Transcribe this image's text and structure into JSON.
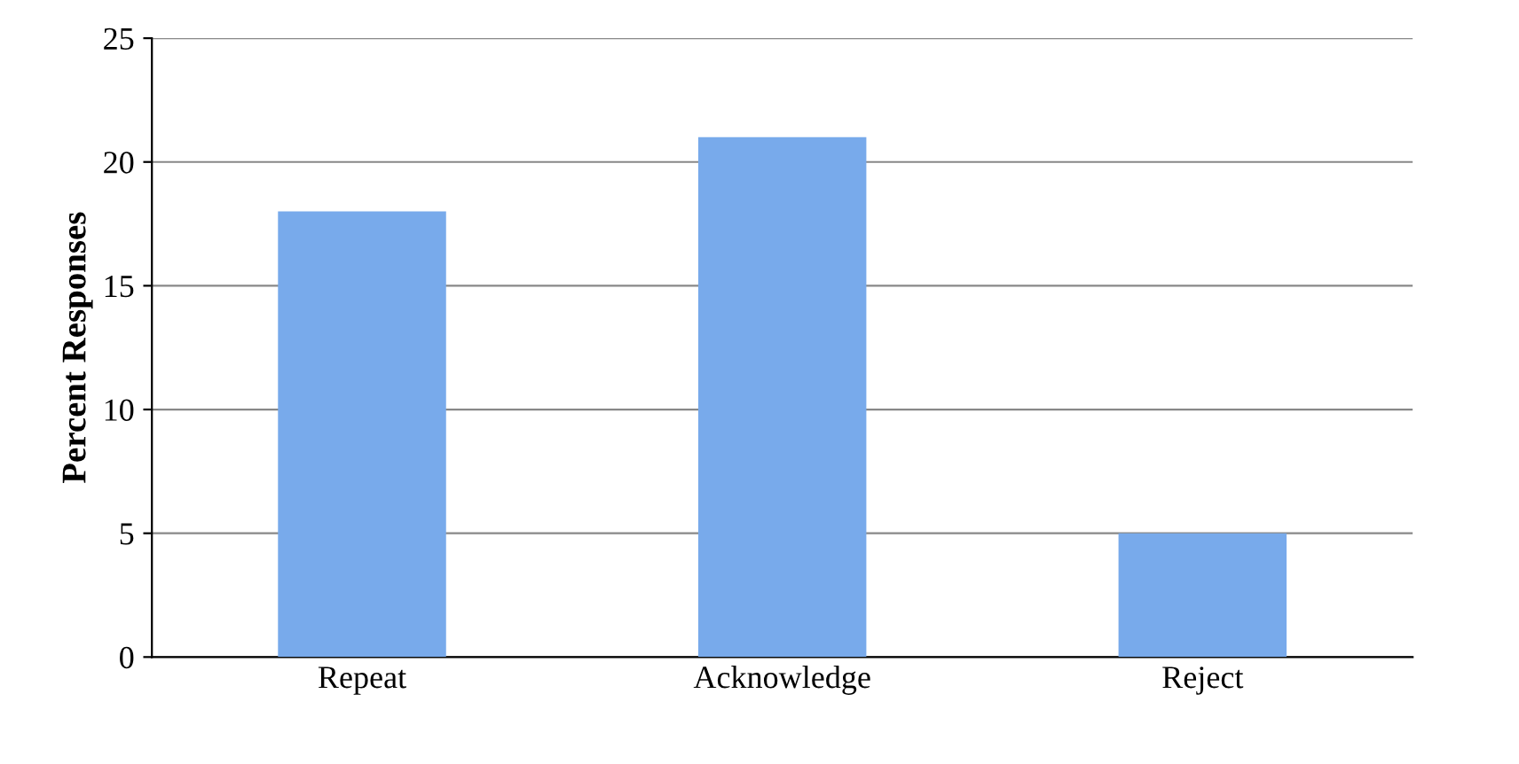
{
  "chart_data": {
    "type": "bar",
    "ylabel": "Percent Responses",
    "categories": [
      "Repeat",
      "Acknowledge",
      "Reject"
    ],
    "values": [
      18,
      21,
      5
    ],
    "color": "#78aaeb",
    "ylim": [
      0,
      25
    ],
    "yticks": [
      0,
      5,
      10,
      15,
      20,
      25
    ],
    "grid": "y"
  }
}
